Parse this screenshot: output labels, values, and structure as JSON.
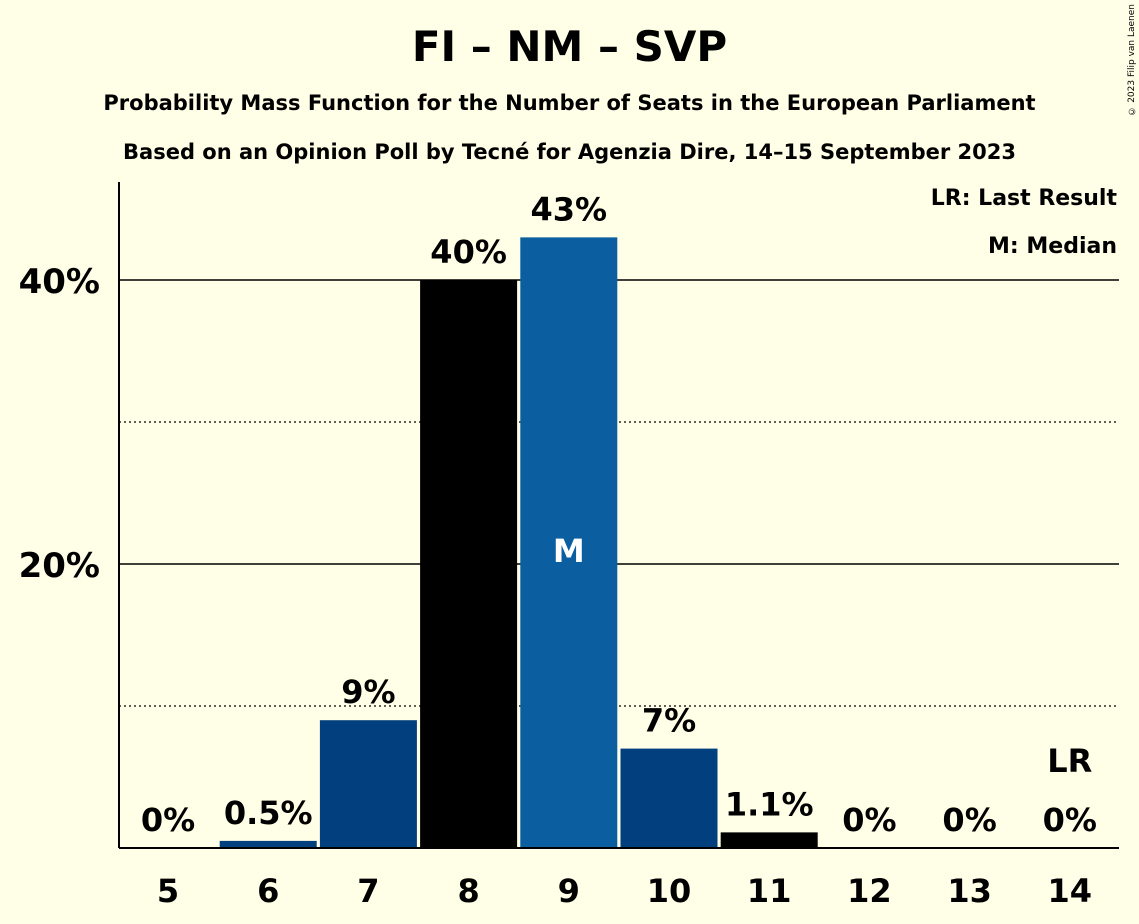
{
  "title": "FI – NM – SVP",
  "subtitle1": "Probability Mass Function for the Number of Seats in the European Parliament",
  "subtitle2": "Based on an Opinion Poll by Tecné for Agenzia Dire, 14–15 September 2023",
  "copyright": "© 2023 Filip van Laenen",
  "legend": {
    "last_result": "LR: Last Result",
    "median": "M: Median"
  },
  "colors": {
    "background": "#FFFEE6",
    "dark_blue": "#023F7E",
    "mid_blue": "#0B5EA0",
    "black": "#000000"
  },
  "chart_data": {
    "type": "bar",
    "categories": [
      "5",
      "6",
      "7",
      "8",
      "9",
      "10",
      "11",
      "12",
      "13",
      "14"
    ],
    "values": [
      0,
      0.5,
      9,
      40,
      43,
      7,
      1.1,
      0,
      0,
      0
    ],
    "value_labels": [
      "0%",
      "0.5%",
      "9%",
      "40%",
      "43%",
      "7%",
      "1.1%",
      "0%",
      "0%",
      "0%"
    ],
    "bar_colors": [
      "#023F7E",
      "#023F7E",
      "#023F7E",
      "#000000",
      "#0B5EA0",
      "#023F7E",
      "#000000",
      "#023F7E",
      "#023F7E",
      "#023F7E"
    ],
    "ylim": [
      0,
      46.9
    ],
    "yticks": [
      {
        "value": 20,
        "label": "20%"
      },
      {
        "value": 40,
        "label": "40%"
      }
    ],
    "minor_grid": [
      10,
      30
    ],
    "median": {
      "category": "9",
      "label": "M"
    },
    "last_result": {
      "category": "14",
      "label": "LR"
    },
    "legend_position": "top-right"
  }
}
